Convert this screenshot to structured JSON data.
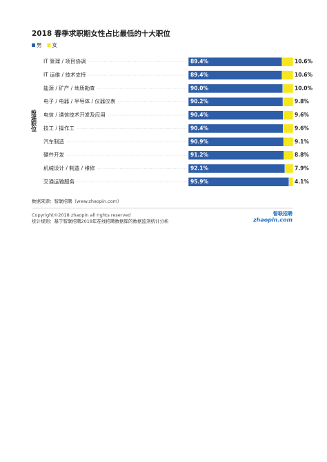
{
  "chart_data": {
    "type": "bar",
    "orientation": "horizontal",
    "stacked": true,
    "title": "2018 春季求职期女性占比最低的十大职位",
    "y_label": "投递职位",
    "categories": [
      "IT 管理 / 项目协调",
      "IT 运维 / 技术支持",
      "能源 / 矿产 / 地质勘查",
      "电子 / 电器 / 半导体 / 仪器仪表",
      "电信 / 通信技术开发及应用",
      "技工 / 操作工",
      "汽车制造",
      "硬件开发",
      "机械设计 / 制造 / 维修",
      "交通运输服务"
    ],
    "xlim": [
      0,
      100
    ],
    "series": [
      {
        "name": "男",
        "color": "#2f5ea8",
        "values": [
          89.4,
          89.4,
          90.0,
          90.2,
          90.4,
          90.4,
          90.9,
          91.2,
          92.1,
          95.9
        ],
        "value_labels": [
          "89.4%",
          "89.4%",
          "90.0%",
          "90.2%",
          "90.4%",
          "90.4%",
          "90.9%",
          "91.2%",
          "92.1%",
          "95.9%"
        ]
      },
      {
        "name": "女",
        "color": "#f6e71d",
        "values": [
          10.6,
          10.6,
          10.0,
          9.8,
          9.6,
          9.6,
          9.1,
          8.8,
          7.9,
          4.1
        ],
        "value_labels": [
          "10.6%",
          "10.6%",
          "10.0%",
          "9.8%",
          "9.6%",
          "9.6%",
          "9.1%",
          "8.8%",
          "7.9%",
          "4.1%"
        ]
      }
    ]
  },
  "source": "数据来源：智联招聘（www.zhaopin.com）",
  "copyright": "Copyright©2018 zhaopin all rights reserved",
  "rule": "统计规则：基于智联招聘2018年在线招聘数据库的数据监测统计分析",
  "logo": {
    "brand": "智联招聘",
    "domain": "zhaopin.com"
  }
}
